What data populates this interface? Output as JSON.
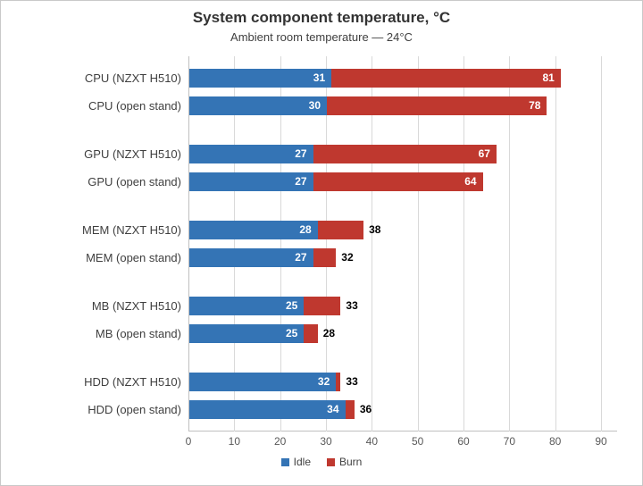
{
  "chart_data": {
    "type": "bar",
    "orientation": "horizontal",
    "title": "System component temperature, °C",
    "subtitle": "Ambient room temperature — 24°C",
    "categories": [
      "CPU (NZXT H510)",
      "CPU (open stand)",
      "GPU (NZXT H510)",
      "GPU (open stand)",
      "MEM (NZXT H510)",
      "MEM (open stand)",
      "MB (NZXT H510)",
      "MB (open stand)",
      "HDD (NZXT H510)",
      "HDD (open stand)"
    ],
    "series": [
      {
        "name": "Idle",
        "color": "#3474b5",
        "values": [
          31,
          30,
          27,
          27,
          28,
          27,
          25,
          25,
          32,
          34
        ]
      },
      {
        "name": "Burn",
        "color": "#bf382f",
        "values": [
          81,
          78,
          67,
          64,
          38,
          32,
          33,
          28,
          33,
          36
        ]
      }
    ],
    "bar_semantics": "Blue segment spans 0 to Idle value; red segment spans Idle to Burn value; labels show Idle (white, inside blue) and Burn (white inside red when long, black outside when short)",
    "xlim": [
      0,
      93.5
    ],
    "xticks": [
      0,
      10,
      20,
      30,
      40,
      50,
      60,
      70,
      80,
      90
    ],
    "grid": true,
    "gridline_color": "#d9d9d9",
    "axis_color": "#bfbfbf",
    "legend_position": "bottom",
    "categories_grouped_in_pairs": true
  }
}
